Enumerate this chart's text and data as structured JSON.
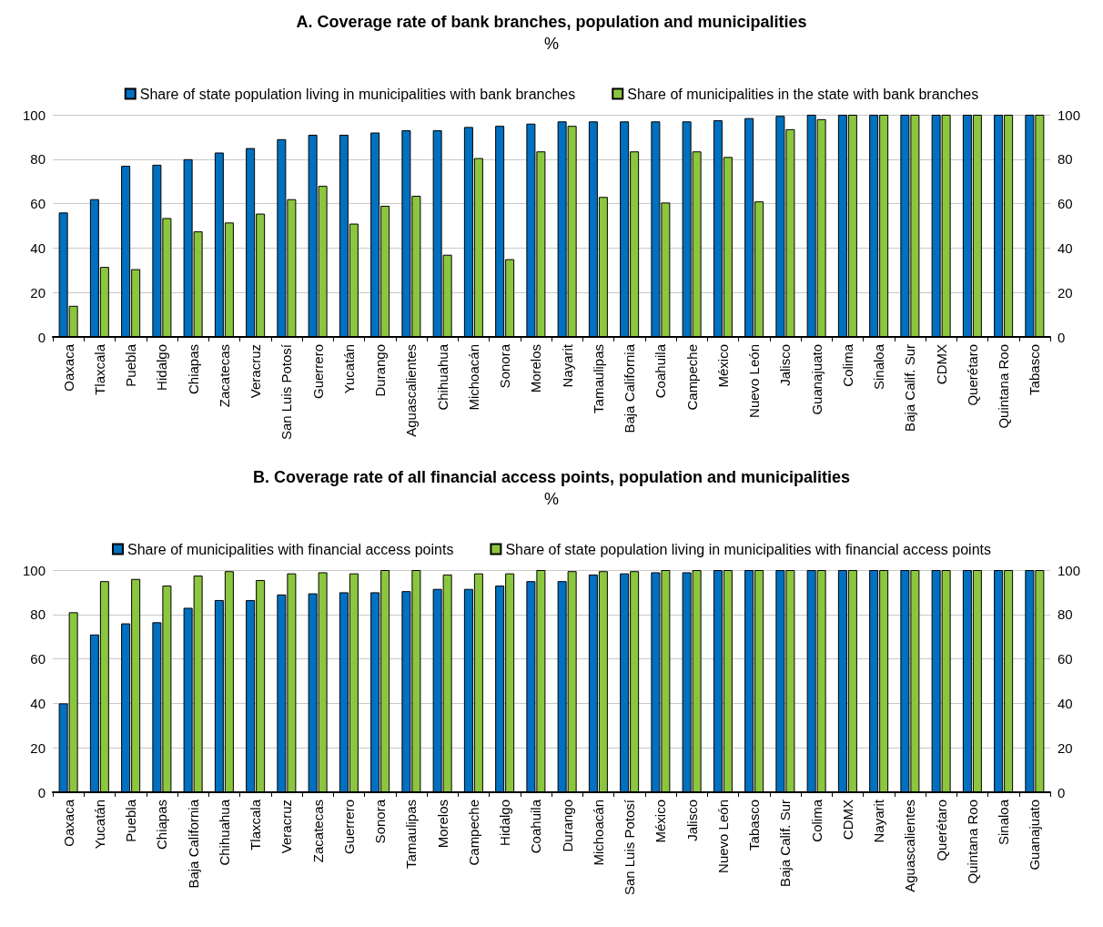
{
  "chart_data": [
    {
      "type": "bar",
      "title": "A. Coverage rate of bank branches, population and municipalities",
      "subtitle": "%",
      "categories": [
        "Oaxaca",
        "Tlaxcala",
        "Puebla",
        "Hidalgo",
        "Chiapas",
        "Zacatecas",
        "Veracruz",
        "San Luis Potosí",
        "Guerrero",
        "Yucatán",
        "Durango",
        "Aguascalientes",
        "Chihuahua",
        "Michoacán",
        "Sonora",
        "Morelos",
        "Nayarit",
        "Tamaulipas",
        "Baja California",
        "Coahuila",
        "Campeche",
        "México",
        "Nuevo León",
        "Jalisco",
        "Guanajuato",
        "Colima",
        "Sinaloa",
        "Baja Calif. Sur",
        "CDMX",
        "Querétaro",
        "Quintana Roo",
        "Tabasco"
      ],
      "series": [
        {
          "name": "Share of state population living in municipalities with bank branches",
          "color": "#0070c0",
          "values": [
            56,
            62,
            77,
            77.5,
            80,
            83,
            85,
            89,
            91,
            91,
            92,
            93,
            93,
            94.5,
            95,
            96,
            97,
            97,
            97,
            97,
            97,
            97.5,
            98.5,
            99.5,
            100,
            100,
            100,
            100,
            100,
            100,
            100,
            100
          ]
        },
        {
          "name": "Share of municipalities in the state with bank branches",
          "color": "#8cc63f",
          "values": [
            14,
            31.5,
            30.5,
            53.5,
            47.5,
            51.5,
            55.5,
            62,
            68,
            51,
            59,
            63.5,
            37,
            80.5,
            35,
            83.5,
            95,
            63,
            83.5,
            60.5,
            83.5,
            81,
            61,
            93.5,
            98,
            100,
            100,
            100,
            100,
            100,
            100,
            100
          ]
        }
      ],
      "ylim": [
        0,
        100
      ],
      "yticks": [
        0,
        20,
        40,
        60,
        80,
        100
      ],
      "y2lim": [
        0,
        100
      ],
      "y2ticks": [
        0,
        20,
        40,
        60,
        80,
        100
      ],
      "grid": "y",
      "legend": "top"
    },
    {
      "type": "bar",
      "title": "B. Coverage rate of all financial access points, population and municipalities",
      "subtitle": "%",
      "categories": [
        "Oaxaca",
        "Yucatán",
        "Puebla",
        "Chiapas",
        "Baja California",
        "Chihuahua",
        "Tlaxcala",
        "Veracruz",
        "Zacatecas",
        "Guerrero",
        "Sonora",
        "Tamaulipas",
        "Morelos",
        "Campeche",
        "Hidalgo",
        "Coahuila",
        "Durango",
        "Michoacán",
        "San Luis Potosí",
        "México",
        "Jalisco",
        "Nuevo León",
        "Tabasco",
        "Baja Calif. Sur",
        "Colima",
        "CDMX",
        "Nayarit",
        "Aguascalientes",
        "Querétaro",
        "Quintana Roo",
        "Sinaloa",
        "Guanajuato"
      ],
      "series": [
        {
          "name": "Share of municipalities with financial access points",
          "color": "#0070c0",
          "values": [
            40,
            71,
            76,
            76.5,
            83,
            86.5,
            86.5,
            89,
            89.5,
            90,
            90,
            90.5,
            91.5,
            91.5,
            93,
            95,
            95,
            98,
            98.5,
            99,
            99,
            100,
            100,
            100,
            100,
            100,
            100,
            100,
            100,
            100,
            100,
            100
          ]
        },
        {
          "name": "Share of state population living in municipalities with financial access points",
          "color": "#8cc63f",
          "values": [
            81,
            95,
            96,
            93,
            97.5,
            99.5,
            95.5,
            98.5,
            99,
            98.5,
            100,
            100,
            98,
            98.5,
            98.5,
            100,
            99.5,
            99.5,
            99.5,
            100,
            100,
            100,
            100,
            100,
            100,
            100,
            100,
            100,
            100,
            100,
            100,
            100
          ]
        }
      ],
      "ylim": [
        0,
        100
      ],
      "yticks": [
        0,
        20,
        40,
        60,
        80,
        100
      ],
      "y2lim": [
        0,
        100
      ],
      "y2ticks": [
        0,
        20,
        40,
        60,
        80,
        100
      ],
      "grid": "y",
      "legend": "top"
    }
  ]
}
